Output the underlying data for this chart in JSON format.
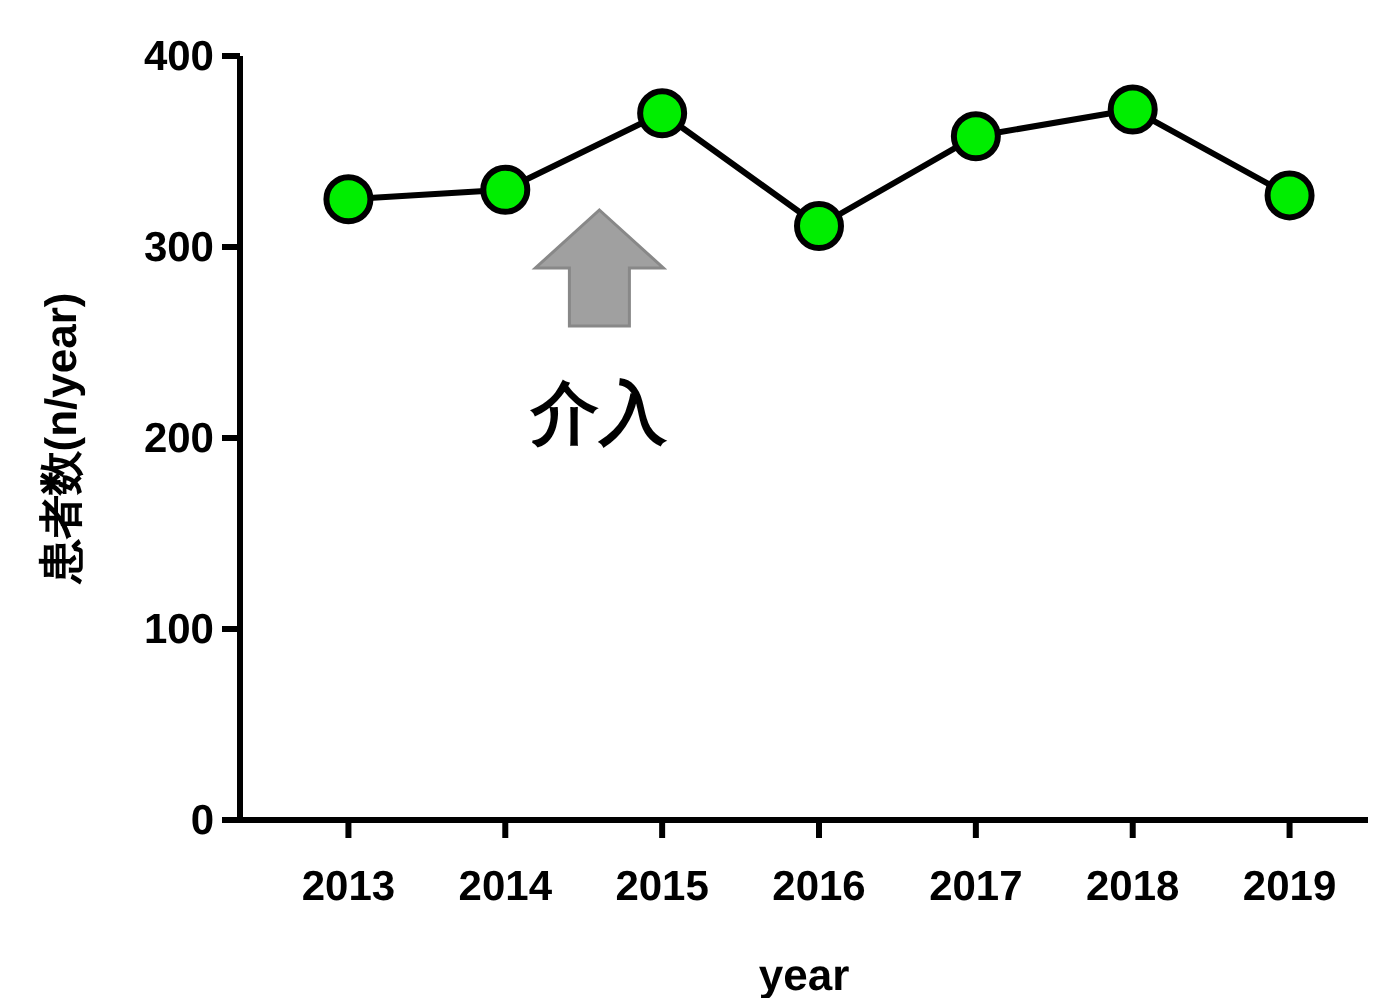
{
  "chart_data": {
    "type": "line",
    "xlabel": "year",
    "ylabel": "患者数(n/year)",
    "categories": [
      "2013",
      "2014",
      "2015",
      "2016",
      "2017",
      "2018",
      "2019"
    ],
    "series": [
      {
        "color": "#00ee00",
        "values": [
          325,
          330,
          370,
          311,
          358,
          372,
          327
        ]
      }
    ],
    "ylim": [
      0,
      400
    ],
    "yticks": [
      0,
      100,
      200,
      300,
      400
    ],
    "marker": "circle",
    "line_style": "solid",
    "grid": false,
    "annotations": [
      "介入"
    ]
  }
}
